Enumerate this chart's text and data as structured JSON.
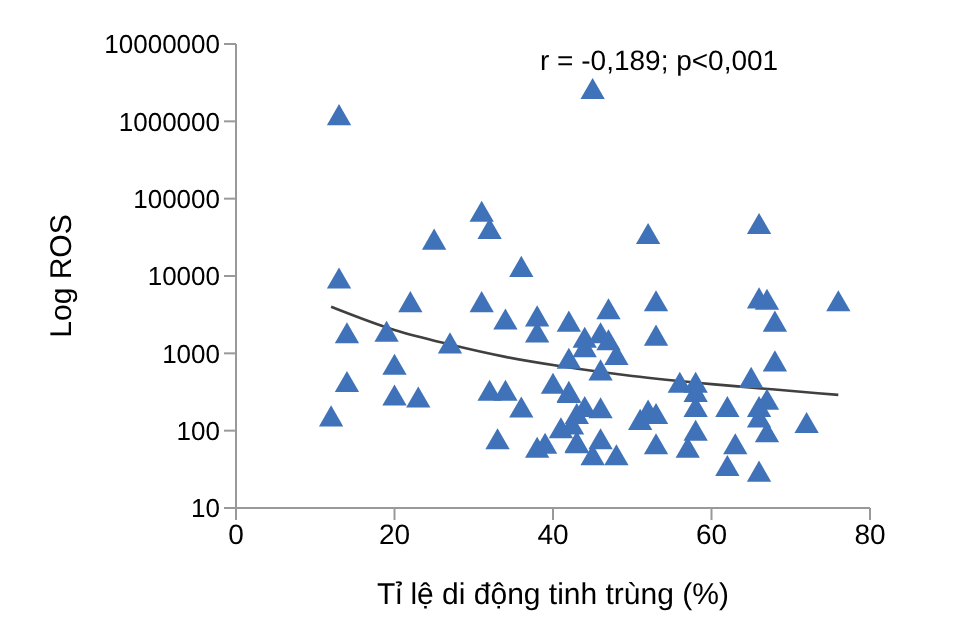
{
  "chart_data": {
    "type": "scatter",
    "xlabel": "Tỉ lệ di động tinh trùng (%)",
    "ylabel": "Log ROS",
    "annotations": [
      "r = -0,189; p<0,001"
    ],
    "xlim": [
      0,
      80
    ],
    "xticks": [
      0,
      20,
      40,
      60,
      80
    ],
    "ylim": [
      10,
      10000000
    ],
    "yticks": [
      10,
      100,
      1000,
      10000,
      100000,
      1000000,
      10000000
    ],
    "log": "y",
    "grid": false,
    "marker": "triangle",
    "series": [
      {
        "color": "#3f72b8",
        "x": [
          13,
          12,
          13,
          14,
          14,
          19,
          20,
          20,
          23,
          22,
          25,
          27,
          31,
          32,
          31,
          36,
          34,
          32,
          34,
          33,
          36,
          38,
          38,
          40,
          38,
          39,
          42,
          42,
          42,
          41,
          43,
          45,
          42,
          44,
          44,
          46,
          47,
          47,
          48,
          46,
          44,
          46,
          43,
          42.4,
          43,
          46,
          45,
          48,
          52,
          53,
          53,
          51,
          52,
          53,
          53,
          56,
          58,
          58,
          58,
          58,
          57,
          62,
          63,
          62,
          66,
          66,
          67,
          68,
          68,
          65,
          67,
          66,
          66,
          67,
          66,
          72,
          76
        ],
        "values": [
          1100000,
          140,
          8500,
          1660,
          390,
          1740,
          650,
          260,
          245,
          4200,
          27000,
          1230,
          62000,
          37000,
          4200,
          12000,
          2500,
          300,
          300,
          71,
          182,
          2750,
          1700,
          370,
          55,
          62,
          2350,
          780,
          280,
          98,
          65,
          2400000,
          290,
          1450,
          1100,
          1660,
          3400,
          1350,
          870,
          550,
          185,
          178,
          150,
          110,
          63,
          71,
          44,
          44,
          32000,
          4300,
          1550,
          126,
          166,
          150,
          61,
          380,
          380,
          290,
          185,
          91,
          55,
          185,
          61,
          32,
          43000,
          4700,
          4500,
          2350,
          720,
          440,
          230,
          185,
          135,
          87,
          27,
          115,
          4300
        ]
      },
      {
        "type": "line",
        "color": "#404040",
        "marker": "none",
        "x": [
          12,
          20,
          27,
          34,
          41,
          50,
          60,
          68,
          76
        ],
        "values": [
          4000,
          2000,
          1300,
          900,
          680,
          510,
          400,
          340,
          290
        ]
      }
    ]
  }
}
